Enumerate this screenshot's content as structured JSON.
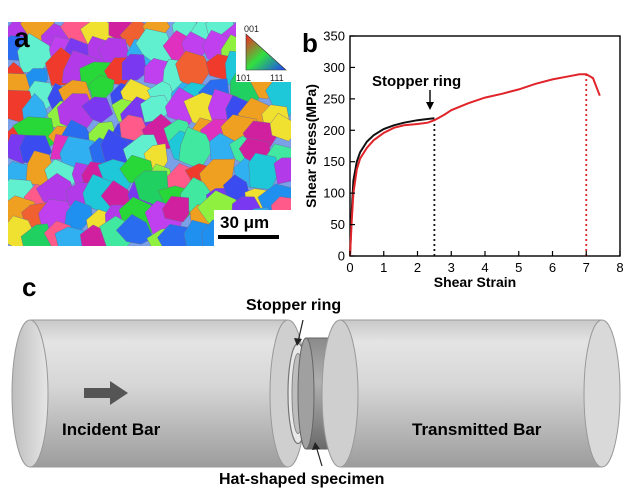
{
  "panel_a": {
    "label": "a",
    "legend_labels": {
      "top": "001",
      "bottom_left": "101",
      "bottom_right": "111"
    },
    "scale_bar": "30 μm"
  },
  "panel_b": {
    "label": "b",
    "annotation": "Stopper ring",
    "colors": {
      "black": "#111111",
      "red": "#e0242a"
    }
  },
  "panel_c": {
    "label": "c",
    "stopper_label": "Stopper ring",
    "incident_label": "Incident Bar",
    "transmitted_label": "Transmitted Bar",
    "specimen_label": "Hat-shaped specimen"
  },
  "chart_data": {
    "type": "line",
    "xlabel": "Shear Strain",
    "ylabel": "Shear Stress(MPa)",
    "xlim": [
      0,
      8
    ],
    "ylim": [
      0,
      350
    ],
    "xticks": [
      0,
      1,
      2,
      3,
      4,
      5,
      6,
      7,
      8
    ],
    "yticks": [
      0,
      50,
      100,
      150,
      200,
      250,
      300,
      350
    ],
    "grid": false,
    "series": [
      {
        "color": "#111111",
        "x": [
          0,
          0.05,
          0.1,
          0.2,
          0.3,
          0.5,
          0.7,
          1.0,
          1.3,
          1.6,
          2.0,
          2.3,
          2.5
        ],
        "y": [
          0,
          70,
          120,
          150,
          165,
          182,
          192,
          202,
          208,
          212,
          216,
          218,
          219
        ]
      },
      {
        "color": "#e0242a",
        "x": [
          0,
          0.05,
          0.1,
          0.2,
          0.3,
          0.5,
          0.7,
          1.0,
          1.3,
          1.6,
          2.0,
          2.3,
          2.5,
          2.8,
          3.0,
          3.5,
          4.0,
          4.5,
          5.0,
          5.5,
          6.0,
          6.5,
          6.8,
          7.0,
          7.2,
          7.4
        ],
        "y": [
          0,
          55,
          100,
          138,
          155,
          172,
          184,
          196,
          204,
          208,
          210,
          212,
          216,
          225,
          232,
          243,
          252,
          258,
          265,
          274,
          281,
          286,
          289,
          289,
          283,
          255
        ]
      }
    ],
    "reference_lines": [
      {
        "x": 2.5,
        "color": "#111111",
        "style": "dotted"
      },
      {
        "x": 7.0,
        "color": "#e0242a",
        "style": "dotted"
      }
    ]
  }
}
